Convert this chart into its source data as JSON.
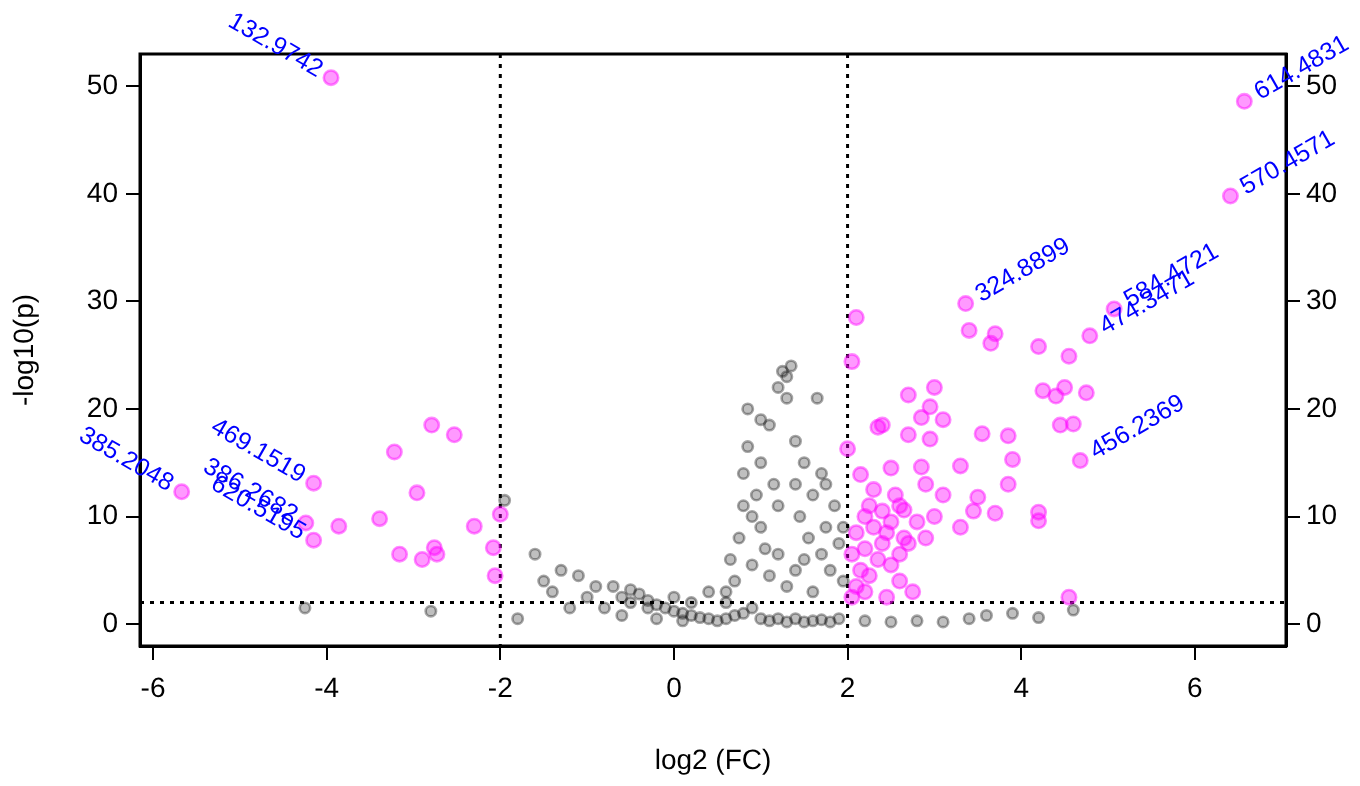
{
  "chart_data": {
    "type": "scatter",
    "xlabel": "log2 (FC)",
    "ylabel": "-log10(p)",
    "xlim": [
      -6.15,
      7.05
    ],
    "xticks": [
      -6,
      -4,
      -2,
      0,
      2,
      4,
      6
    ],
    "ylim": [
      -2.04,
      53
    ],
    "yticks": [
      0,
      10,
      20,
      30,
      40,
      50
    ],
    "y2lim": [
      -2.04,
      53
    ],
    "y2ticks": [
      0,
      10,
      20,
      30,
      40,
      50
    ],
    "grid": false,
    "legend": false,
    "marker": "circle",
    "series": [
      {
        "color": "#000000",
        "x": [
          -4.25,
          -2.8,
          -1.95,
          -1.8,
          -1.6,
          -1.5,
          -1.4,
          -1.3,
          -1.2,
          -1.1,
          -1.0,
          -0.9,
          -0.8,
          -0.7,
          -0.6,
          -0.5,
          -0.4,
          -0.3,
          -0.2,
          -0.1,
          0,
          0.1,
          0.2,
          0.3,
          0.4,
          0.5,
          0.6,
          0.7,
          0.8,
          0.9,
          1.0,
          1.1,
          1.2,
          1.3,
          1.4,
          1.5,
          1.6,
          1.7,
          1.8,
          1.9,
          2.2,
          2.5,
          2.8,
          3.1,
          3.4,
          3.6,
          3.9,
          4.2,
          4.6,
          -0.5,
          -0.3,
          0,
          0.2,
          0.4,
          0.6,
          -0.6,
          -0.2,
          0.1,
          0.7,
          0.75,
          0.8,
          0.8,
          0.85,
          0.9,
          0.95,
          1.0,
          1.0,
          1.05,
          1.1,
          1.15,
          1.2,
          1.25,
          1.3,
          1.3,
          1.35,
          1.4,
          1.45,
          1.5,
          1.55,
          1.6,
          1.65,
          1.7,
          1.75,
          1.8,
          1.85,
          1.9,
          1.95,
          0.9,
          1.1,
          1.2,
          1.3,
          1.4,
          1.6,
          1.7,
          0.65,
          0.6,
          1.5,
          1.2,
          1.0,
          0.85,
          1.4,
          1.75,
          1.95
        ],
        "values": [
          1.5,
          1.2,
          11.5,
          0.5,
          6.5,
          4,
          3,
          5,
          1.5,
          4.5,
          2.5,
          3.5,
          1.5,
          3.5,
          2.5,
          3.2,
          2.8,
          2.2,
          1.8,
          1.5,
          1.2,
          1.0,
          0.8,
          0.6,
          0.5,
          0.3,
          0.5,
          0.8,
          1.0,
          1.5,
          0.5,
          0.3,
          0.5,
          0.2,
          0.5,
          0.2,
          0.3,
          0.4,
          0.2,
          0.5,
          0.3,
          0.2,
          0.3,
          0.2,
          0.5,
          0.8,
          1,
          0.6,
          1.3,
          2,
          1.5,
          2.5,
          2,
          3,
          2,
          0.8,
          0.5,
          0.3,
          4,
          8,
          11,
          14,
          16.5,
          10,
          12,
          9,
          15,
          7,
          18.5,
          13,
          22,
          23.5,
          23,
          21,
          24,
          17,
          10,
          6,
          8,
          12,
          21,
          14,
          13,
          5,
          11,
          7.5,
          9,
          5.5,
          4.5,
          6.5,
          3.5,
          5,
          3,
          6.5,
          6,
          3,
          15,
          11,
          19,
          20,
          13,
          9,
          4
        ]
      },
      {
        "color": "#ff00ff",
        "x": [
          -3.95,
          -4.15,
          -5.67,
          -4.24,
          -4.15,
          -3.86,
          -3.39,
          -3.22,
          -2.96,
          -2.79,
          -2.53,
          -3.16,
          -2.9,
          -2.76,
          -2.73,
          -2.3,
          -2.08,
          -2.06,
          -2.0,
          6.57,
          6.41,
          3.36,
          5.07,
          4.79,
          4.68,
          2.1,
          2.05,
          2.0,
          2.15,
          3.4,
          3.65,
          3.7,
          4.2,
          4.55,
          4.25,
          4.4,
          4.5,
          4.75,
          4.6,
          3.0,
          2.95,
          3.1,
          2.7,
          2.35,
          2.4,
          2.85,
          2.7,
          2.95,
          3.3,
          3.55,
          3.85,
          3.9,
          3.85,
          3.7,
          4.2,
          4.2,
          4.45,
          3.5,
          3.3,
          2.85,
          2.9,
          3.0,
          2.65,
          2.5,
          2.55,
          2.6,
          2.45,
          2.3,
          2.25,
          2.2,
          2.3,
          2.4,
          2.2,
          2.35,
          2.15,
          2.1,
          2.2,
          2.5,
          2.6,
          2.7,
          2.8,
          2.9,
          2.75,
          2.6,
          2.45,
          2.05,
          2.1,
          4.55,
          3.45,
          3.1,
          2.4,
          2.5,
          2.65,
          2.25,
          2.05
        ],
        "values": [
          50.8,
          13.1,
          12.3,
          9.4,
          7.8,
          9.1,
          9.8,
          16.0,
          12.2,
          18.5,
          17.6,
          6.5,
          6.0,
          7.1,
          6.5,
          9.1,
          7.1,
          4.5,
          10.2,
          48.6,
          39.8,
          29.8,
          29.3,
          26.8,
          15.2,
          28.5,
          24.4,
          16.3,
          13.9,
          27.3,
          26.1,
          27,
          25.8,
          24.9,
          21.7,
          21.2,
          22,
          21.5,
          18.6,
          22,
          20.2,
          19,
          17.6,
          18.3,
          18.5,
          19.2,
          21.3,
          17.2,
          14.7,
          17.7,
          17.5,
          15.3,
          13,
          10.3,
          10.4,
          9.6,
          18.5,
          11.8,
          9,
          14.6,
          13,
          10,
          10.6,
          14.5,
          12,
          11,
          8.5,
          12.5,
          11,
          10,
          9,
          7.5,
          7,
          6,
          5,
          3.5,
          3,
          5.5,
          6.5,
          7.5,
          9.5,
          8,
          3,
          4,
          2.5,
          6.5,
          8.5,
          2.5,
          10.5,
          12,
          10.5,
          9.5,
          8,
          4.5,
          2.5
        ]
      }
    ],
    "ref_lines": [
      {
        "axis": "x",
        "value": -2,
        "line_style": "dotted",
        "color": "#000000"
      },
      {
        "axis": "x",
        "value": 2,
        "line_style": "dotted",
        "color": "#000000"
      },
      {
        "axis": "y",
        "value": 2,
        "line_style": "dotted",
        "color": "#000000"
      }
    ],
    "annotations": [
      {
        "text": "132.9742",
        "x": -3.95,
        "y": 50.8
      },
      {
        "text": "469.1519",
        "x": -4.15,
        "y": 13.1
      },
      {
        "text": "385.2048",
        "x": -5.67,
        "y": 12.3
      },
      {
        "text": "386.2682",
        "x": -4.24,
        "y": 9.4
      },
      {
        "text": "620.5195",
        "x": -4.15,
        "y": 7.8
      },
      {
        "text": "614.4831",
        "x": 6.57,
        "y": 48.6
      },
      {
        "text": "570.4571",
        "x": 6.41,
        "y": 39.8
      },
      {
        "text": "324.8899",
        "x": 3.36,
        "y": 29.8
      },
      {
        "text": "584.4721",
        "x": 5.07,
        "y": 29.3
      },
      {
        "text": "474.3471",
        "x": 4.79,
        "y": 26.8
      },
      {
        "text": "456.2369",
        "x": 4.68,
        "y": 15.2
      }
    ]
  }
}
